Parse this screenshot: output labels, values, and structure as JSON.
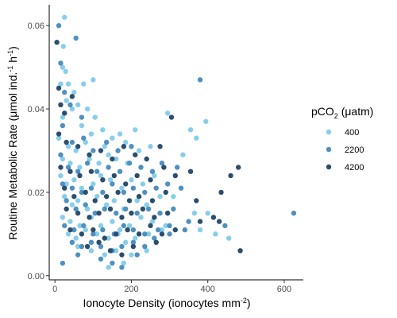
{
  "chart_data": {
    "type": "scatter",
    "xlabel": "Ionocyte Density (ionocytes mm",
    "xlabel_sup": "-2",
    "xlabel_end": ")",
    "ylabel": "Routine Metabolic Rate (μmol ind.",
    "ylabel_sup1": "-1",
    "ylabel_mid": " h",
    "ylabel_sup2": "-1",
    "ylabel_end": ")",
    "xlim": [
      -15,
      650
    ],
    "ylim": [
      -0.001,
      0.065
    ],
    "xticks": [
      0,
      200,
      400,
      600
    ],
    "xtick_labels": [
      "0",
      "200",
      "400",
      "600"
    ],
    "yticks": [
      0.0,
      0.02,
      0.04,
      0.06
    ],
    "ytick_labels": [
      "0.00",
      "0.02",
      "0.04",
      "0.06"
    ],
    "grid": false,
    "legend": {
      "title": "pCO",
      "title_sub": "2",
      "title_end": " (μatm)",
      "placement": "right"
    },
    "series": [
      {
        "name": "400",
        "color": "#87CEEB",
        "points": [
          [
            25,
            0.062
          ],
          [
            22,
            0.055
          ],
          [
            20,
            0.05
          ],
          [
            28,
            0.049
          ],
          [
            15,
            0.046
          ],
          [
            35,
            0.046
          ],
          [
            50,
            0.044
          ],
          [
            75,
            0.046
          ],
          [
            100,
            0.047
          ],
          [
            30,
            0.042
          ],
          [
            45,
            0.04
          ],
          [
            60,
            0.041
          ],
          [
            85,
            0.04
          ],
          [
            105,
            0.038
          ],
          [
            20,
            0.038
          ],
          [
            70,
            0.036
          ],
          [
            95,
            0.034
          ],
          [
            125,
            0.035
          ],
          [
            10,
            0.033
          ],
          [
            35,
            0.031
          ],
          [
            55,
            0.03
          ],
          [
            80,
            0.032
          ],
          [
            130,
            0.031
          ],
          [
            150,
            0.033
          ],
          [
            170,
            0.034
          ],
          [
            185,
            0.032
          ],
          [
            210,
            0.035
          ],
          [
            20,
            0.028
          ],
          [
            40,
            0.027
          ],
          [
            65,
            0.026
          ],
          [
            90,
            0.028
          ],
          [
            115,
            0.027
          ],
          [
            140,
            0.029
          ],
          [
            160,
            0.028
          ],
          [
            190,
            0.027
          ],
          [
            220,
            0.03
          ],
          [
            250,
            0.031
          ],
          [
            15,
            0.024
          ],
          [
            30,
            0.022
          ],
          [
            50,
            0.023
          ],
          [
            70,
            0.021
          ],
          [
            100,
            0.022
          ],
          [
            120,
            0.024
          ],
          [
            145,
            0.023
          ],
          [
            175,
            0.021
          ],
          [
            200,
            0.023
          ],
          [
            230,
            0.022
          ],
          [
            260,
            0.024
          ],
          [
            25,
            0.019
          ],
          [
            45,
            0.017
          ],
          [
            60,
            0.018
          ],
          [
            85,
            0.016
          ],
          [
            110,
            0.019
          ],
          [
            135,
            0.017
          ],
          [
            155,
            0.018
          ],
          [
            180,
            0.016
          ],
          [
            215,
            0.018
          ],
          [
            240,
            0.017
          ],
          [
            275,
            0.019
          ],
          [
            20,
            0.014
          ],
          [
            40,
            0.013
          ],
          [
            65,
            0.012
          ],
          [
            95,
            0.014
          ],
          [
            120,
            0.012
          ],
          [
            150,
            0.013
          ],
          [
            170,
            0.011
          ],
          [
            195,
            0.012
          ],
          [
            225,
            0.014
          ],
          [
            255,
            0.013
          ],
          [
            290,
            0.012
          ],
          [
            35,
            0.01
          ],
          [
            55,
            0.009
          ],
          [
            80,
            0.011
          ],
          [
            110,
            0.01
          ],
          [
            140,
            0.009
          ],
          [
            165,
            0.01
          ],
          [
            185,
            0.008
          ],
          [
            210,
            0.009
          ],
          [
            245,
            0.01
          ],
          [
            280,
            0.011
          ],
          [
            60,
            0.007
          ],
          [
            95,
            0.006
          ],
          [
            130,
            0.005
          ],
          [
            160,
            0.006
          ],
          [
            200,
            0.005
          ],
          [
            240,
            0.006
          ],
          [
            180,
            0.003
          ],
          [
            140,
            0.002
          ],
          [
            295,
            0.039
          ],
          [
            355,
            0.035
          ],
          [
            370,
            0.033
          ],
          [
            395,
            0.037
          ],
          [
            335,
            0.029
          ],
          [
            365,
            0.015
          ],
          [
            400,
            0.015
          ],
          [
            420,
            0.01
          ],
          [
            455,
            0.009
          ],
          [
            380,
            0.011
          ],
          [
            310,
            0.019
          ]
        ]
      },
      {
        "name": "2200",
        "color": "#5090C0",
        "points": [
          [
            10,
            0.06
          ],
          [
            15,
            0.051
          ],
          [
            25,
            0.044
          ],
          [
            40,
            0.041
          ],
          [
            55,
            0.057
          ],
          [
            70,
            0.038
          ],
          [
            20,
            0.036
          ],
          [
            45,
            0.032
          ],
          [
            75,
            0.033
          ],
          [
            100,
            0.03
          ],
          [
            135,
            0.032
          ],
          [
            165,
            0.03
          ],
          [
            200,
            0.031
          ],
          [
            15,
            0.029
          ],
          [
            35,
            0.026
          ],
          [
            60,
            0.025
          ],
          [
            85,
            0.027
          ],
          [
            110,
            0.025
          ],
          [
            140,
            0.026
          ],
          [
            170,
            0.025
          ],
          [
            195,
            0.027
          ],
          [
            225,
            0.026
          ],
          [
            255,
            0.025
          ],
          [
            280,
            0.027
          ],
          [
            320,
            0.026
          ],
          [
            20,
            0.022
          ],
          [
            45,
            0.021
          ],
          [
            70,
            0.02
          ],
          [
            95,
            0.021
          ],
          [
            125,
            0.02
          ],
          [
            150,
            0.022
          ],
          [
            180,
            0.02
          ],
          [
            205,
            0.021
          ],
          [
            235,
            0.02
          ],
          [
            265,
            0.021
          ],
          [
            295,
            0.022
          ],
          [
            330,
            0.021
          ],
          [
            30,
            0.018
          ],
          [
            55,
            0.016
          ],
          [
            80,
            0.017
          ],
          [
            105,
            0.015
          ],
          [
            130,
            0.016
          ],
          [
            160,
            0.015
          ],
          [
            185,
            0.016
          ],
          [
            215,
            0.015
          ],
          [
            245,
            0.016
          ],
          [
            275,
            0.015
          ],
          [
            310,
            0.016
          ],
          [
            25,
            0.012
          ],
          [
            50,
            0.011
          ],
          [
            75,
            0.012
          ],
          [
            100,
            0.01
          ],
          [
            125,
            0.011
          ],
          [
            155,
            0.01
          ],
          [
            180,
            0.012
          ],
          [
            205,
            0.011
          ],
          [
            235,
            0.01
          ],
          [
            270,
            0.011
          ],
          [
            300,
            0.012
          ],
          [
            340,
            0.011
          ],
          [
            45,
            0.008
          ],
          [
            70,
            0.007
          ],
          [
            95,
            0.008
          ],
          [
            120,
            0.007
          ],
          [
            150,
            0.006
          ],
          [
            175,
            0.007
          ],
          [
            205,
            0.008
          ],
          [
            235,
            0.007
          ],
          [
            260,
            0.009
          ],
          [
            300,
            0.01
          ],
          [
            20,
            0.003
          ],
          [
            60,
            0.005
          ],
          [
            120,
            0.004
          ],
          [
            150,
            0.003
          ],
          [
            175,
            0.002
          ],
          [
            215,
            0.005
          ],
          [
            380,
            0.047
          ],
          [
            350,
            0.013
          ],
          [
            445,
            0.012
          ],
          [
            625,
            0.015
          ]
        ]
      },
      {
        "name": "4200",
        "color": "#2B4E6E",
        "points": [
          [
            5,
            0.056
          ],
          [
            10,
            0.045
          ],
          [
            15,
            0.041
          ],
          [
            45,
            0.043
          ],
          [
            25,
            0.039
          ],
          [
            10,
            0.034
          ],
          [
            30,
            0.032
          ],
          [
            60,
            0.031
          ],
          [
            90,
            0.029
          ],
          [
            120,
            0.03
          ],
          [
            150,
            0.028
          ],
          [
            180,
            0.031
          ],
          [
            210,
            0.029
          ],
          [
            240,
            0.028
          ],
          [
            275,
            0.031
          ],
          [
            305,
            0.038
          ],
          [
            15,
            0.026
          ],
          [
            40,
            0.025
          ],
          [
            65,
            0.024
          ],
          [
            95,
            0.025
          ],
          [
            125,
            0.023
          ],
          [
            155,
            0.024
          ],
          [
            185,
            0.022
          ],
          [
            215,
            0.024
          ],
          [
            250,
            0.023
          ],
          [
            285,
            0.026
          ],
          [
            315,
            0.024
          ],
          [
            355,
            0.025
          ],
          [
            25,
            0.021
          ],
          [
            50,
            0.019
          ],
          [
            80,
            0.02
          ],
          [
            105,
            0.018
          ],
          [
            135,
            0.019
          ],
          [
            165,
            0.02
          ],
          [
            195,
            0.018
          ],
          [
            220,
            0.019
          ],
          [
            255,
            0.018
          ],
          [
            290,
            0.02
          ],
          [
            30,
            0.016
          ],
          [
            60,
            0.015
          ],
          [
            90,
            0.014
          ],
          [
            115,
            0.015
          ],
          [
            145,
            0.016
          ],
          [
            175,
            0.014
          ],
          [
            200,
            0.015
          ],
          [
            230,
            0.016
          ],
          [
            260,
            0.014
          ],
          [
            295,
            0.015
          ],
          [
            40,
            0.011
          ],
          [
            70,
            0.01
          ],
          [
            100,
            0.011
          ],
          [
            130,
            0.009
          ],
          [
            160,
            0.01
          ],
          [
            190,
            0.011
          ],
          [
            220,
            0.01
          ],
          [
            250,
            0.012
          ],
          [
            280,
            0.01
          ],
          [
            315,
            0.011
          ],
          [
            85,
            0.007
          ],
          [
            115,
            0.008
          ],
          [
            145,
            0.006
          ],
          [
            175,
            0.005
          ],
          [
            205,
            0.007
          ],
          [
            265,
            0.008
          ],
          [
            370,
            0.018
          ],
          [
            380,
            0.013
          ],
          [
            415,
            0.014
          ],
          [
            435,
            0.02
          ],
          [
            460,
            0.024
          ],
          [
            480,
            0.026
          ],
          [
            485,
            0.006
          ],
          [
            430,
            0.013
          ]
        ]
      }
    ]
  }
}
